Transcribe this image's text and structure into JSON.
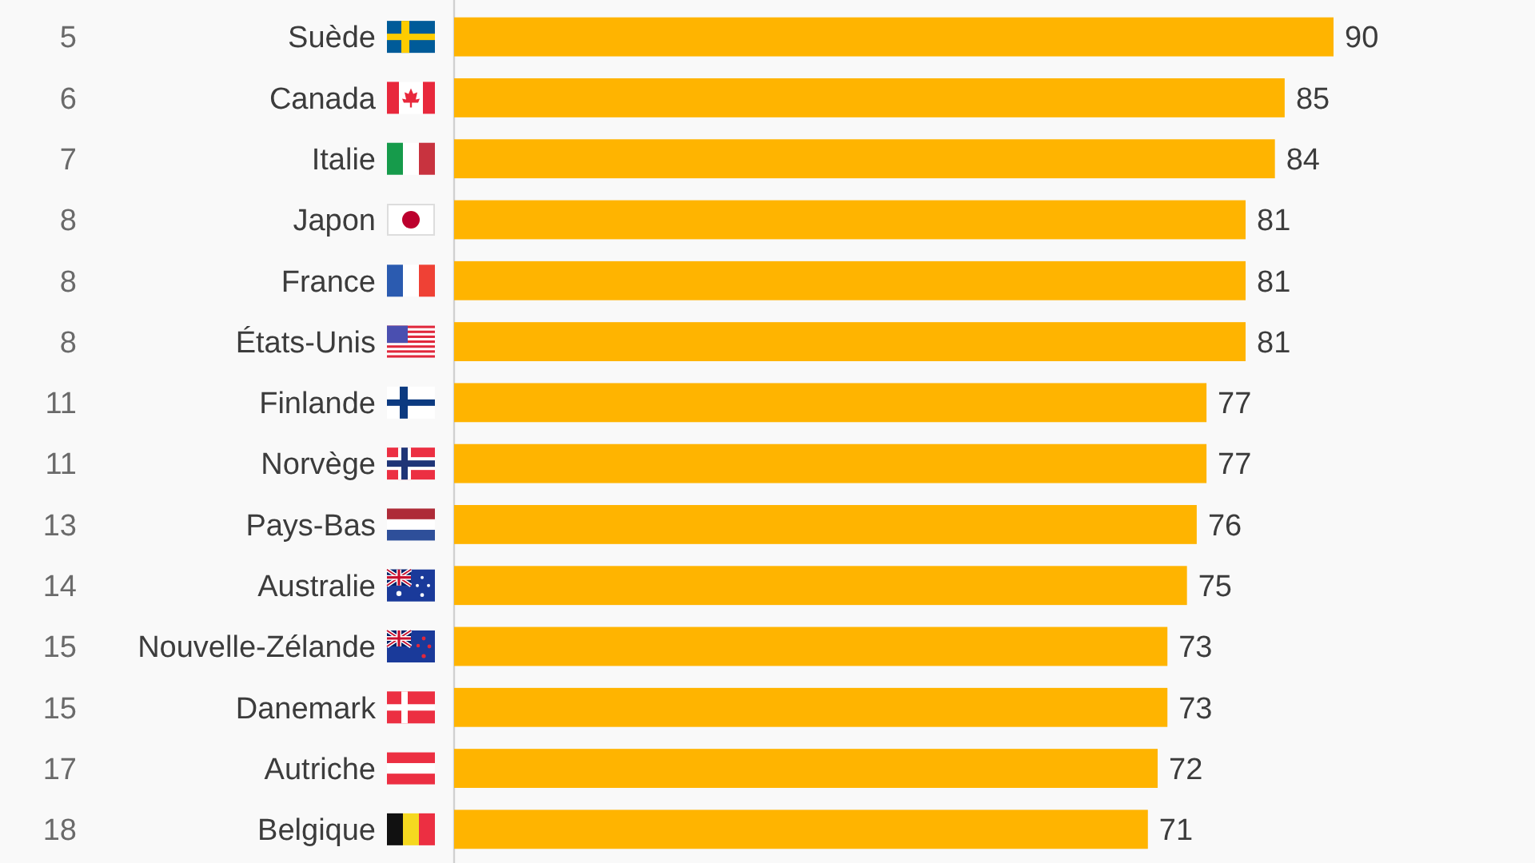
{
  "chart_data": {
    "type": "bar",
    "orientation": "horizontal",
    "categories": [
      "Suède",
      "Canada",
      "Italie",
      "Japon",
      "France",
      "États-Unis",
      "Finlande",
      "Norvège",
      "Pays-Bas",
      "Australie",
      "Nouvelle-Zélande",
      "Danemark",
      "Autriche",
      "Belgique"
    ],
    "values": [
      90,
      85,
      84,
      81,
      81,
      81,
      77,
      77,
      76,
      75,
      73,
      73,
      72,
      71
    ],
    "color": "#ffb400",
    "data_labels": true,
    "tick_labels": "y",
    "annotations": [
      "5",
      "6",
      "7",
      "8",
      "8",
      "8",
      "11",
      "11",
      "13",
      "14",
      "15",
      "15",
      "17",
      "18"
    ]
  }
}
